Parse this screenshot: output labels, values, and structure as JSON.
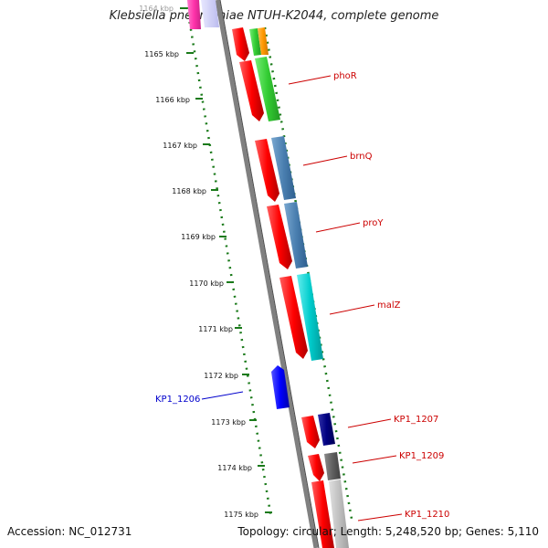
{
  "title": "Klebsiella pneumoniae NTUH-K2044, complete genome",
  "footer": {
    "accession": "Accession: NC_012731",
    "topology": "Topology: circular; Length: 5,248,520 bp; Genes: 5,110"
  },
  "ticks": [
    {
      "label": "1164 kbp"
    },
    {
      "label": "1165 kbp"
    },
    {
      "label": "1166 kbp"
    },
    {
      "label": "1167 kbp"
    },
    {
      "label": "1168 kbp"
    },
    {
      "label": "1169 kbp"
    },
    {
      "label": "1170 kbp"
    },
    {
      "label": "1171 kbp"
    },
    {
      "label": "1172 kbp"
    },
    {
      "label": "1173 kbp"
    },
    {
      "label": "1174 kbp"
    },
    {
      "label": "1175 kbp"
    }
  ],
  "gene_labels": [
    {
      "text": "phoR",
      "color": "#cc0000"
    },
    {
      "text": "brnQ",
      "color": "#cc0000"
    },
    {
      "text": "proY",
      "color": "#cc0000"
    },
    {
      "text": "malZ",
      "color": "#cc0000"
    },
    {
      "text": "KP1_1206",
      "color": "#0000cc"
    },
    {
      "text": "KP1_1207",
      "color": "#cc0000"
    },
    {
      "text": "KP1_1209",
      "color": "#cc0000"
    },
    {
      "text": "KP1_1210",
      "color": "#cc0000"
    }
  ],
  "colors": {
    "forward_cds": "#ff0000",
    "reverse_cds": "#0000ff",
    "backbone": "#808080",
    "tick_dots": "#1a7a1a",
    "cog_green": "#33cc33",
    "cog_steelblue": "#4a7fb0",
    "cog_cyan": "#00cccc",
    "cog_navy": "#000080",
    "cog_darkgray": "#606060",
    "cog_lightgray": "#c0c0c0",
    "cog_orange": "#ff9900",
    "cog_pink": "#ff33aa"
  }
}
